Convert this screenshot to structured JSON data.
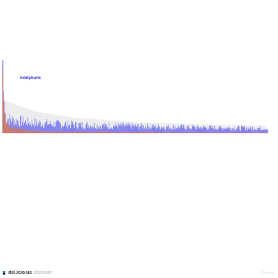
{
  "highlight_label": "kiddphunk",
  "footer": {
    "brand": "del.icio.us",
    "suffix": "discover",
    "powered_by": "Prefuse"
  },
  "colors": {
    "primary_series": "#3b3bf0",
    "secondary_series": "#f07a2a",
    "baseline": "#d25050",
    "envelope": "#e6e6e6"
  },
  "chart_data": {
    "type": "bar",
    "title": "",
    "xlabel": "",
    "ylabel": "",
    "n_points": 380,
    "ylim": [
      0,
      110
    ],
    "grid": false,
    "highlighted_series": "kiddphunk",
    "series": [
      {
        "name": "kiddphunk",
        "peaks": [
          [
            0,
            105
          ],
          [
            1,
            60
          ],
          [
            2,
            45
          ],
          [
            3,
            40
          ],
          [
            5,
            30
          ],
          [
            8,
            28
          ],
          [
            12,
            25
          ],
          [
            20,
            24
          ],
          [
            40,
            20
          ],
          [
            80,
            17
          ],
          [
            150,
            14
          ],
          [
            220,
            12
          ],
          [
            300,
            10
          ],
          [
            380,
            9
          ]
        ]
      },
      {
        "name": "",
        "peaks": [
          [
            0,
            90
          ],
          [
            1,
            48
          ],
          [
            2,
            30
          ],
          [
            4,
            20
          ],
          [
            8,
            12
          ],
          [
            15,
            10
          ],
          [
            25,
            8
          ],
          [
            40,
            4
          ],
          [
            60,
            2
          ],
          [
            380,
            0
          ]
        ]
      }
    ],
    "envelope": [
      [
        0,
        48
      ],
      [
        20,
        40
      ],
      [
        50,
        30
      ],
      [
        100,
        22
      ],
      [
        200,
        15
      ],
      [
        300,
        12
      ],
      [
        380,
        10
      ]
    ]
  }
}
